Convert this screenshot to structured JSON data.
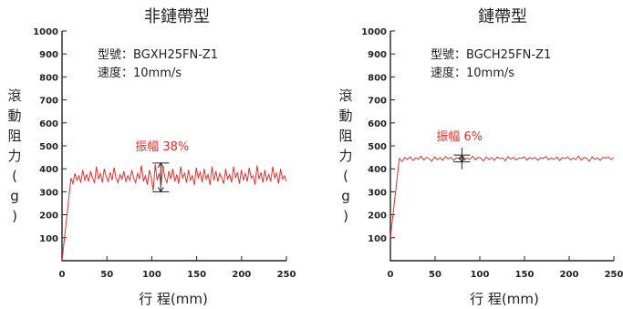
{
  "chart_data": [
    {
      "type": "line",
      "title": "非鏈帶型",
      "xlabel": "行 程(mm)",
      "ylabel_chars": [
        "滾",
        "動",
        "阻",
        "力",
        "(",
        "g",
        ")"
      ],
      "xlim": [
        0,
        250
      ],
      "ylim": [
        0,
        1000
      ],
      "x_ticks": [
        0,
        50,
        100,
        150,
        200,
        250
      ],
      "y_ticks": [
        100,
        200,
        300,
        400,
        500,
        600,
        700,
        800,
        900,
        1000
      ],
      "info_lines": [
        "型號：BGXH25FN-Z1",
        "速度：10mm/s"
      ],
      "amplitude_label": "振幅 38%",
      "amplitude_range": [
        300,
        425
      ],
      "amplitude_x": 110,
      "color": "#e0312d",
      "series": [
        {
          "ramp": [
            [
              0,
              0
            ],
            [
              10,
              360
            ]
          ],
          "x_start": 10,
          "x_end": 250,
          "values": [
            360,
            335,
            380,
            350,
            370,
            340,
            395,
            350,
            375,
            345,
            390,
            360,
            340,
            410,
            355,
            380,
            340,
            400,
            365,
            345,
            385,
            350,
            405,
            360,
            340,
            375,
            355,
            390,
            345,
            370,
            350,
            395,
            360,
            340,
            380,
            355,
            415,
            345,
            370,
            330,
            395,
            360,
            305,
            420,
            350,
            380,
            330,
            410,
            360,
            340,
            390,
            355,
            400,
            345,
            375,
            335,
            410,
            360,
            380,
            340,
            395,
            350,
            370,
            330,
            405,
            360,
            385,
            340,
            400,
            355,
            375,
            330,
            410,
            350,
            390,
            345,
            380,
            360,
            335,
            400,
            355,
            375,
            340,
            410,
            360,
            385,
            335,
            395,
            350,
            380,
            345,
            405,
            360,
            370,
            330,
            415,
            355,
            385,
            340,
            395,
            350,
            375,
            345,
            410,
            360,
            380,
            335,
            400,
            355,
            370,
            345
          ]
        }
      ]
    },
    {
      "type": "line",
      "title": "鏈帶型",
      "xlabel": "行 程(mm)",
      "ylabel_chars": [
        "滾",
        "動",
        "阻",
        "力",
        "(",
        "g",
        ")"
      ],
      "xlim": [
        0,
        250
      ],
      "ylim": [
        0,
        1000
      ],
      "x_ticks": [
        0,
        50,
        100,
        150,
        200,
        250
      ],
      "y_ticks": [
        100,
        200,
        300,
        400,
        500,
        600,
        700,
        800,
        900,
        1000
      ],
      "info_lines": [
        "型號：BGCH25FN-Z1",
        "速度：10mm/s"
      ],
      "amplitude_label": "振幅 6%",
      "amplitude_range": [
        430,
        460
      ],
      "amplitude_x": 80,
      "color": "#e0312d",
      "series": [
        {
          "ramp": [
            [
              0,
              100
            ],
            [
              10,
              445
            ]
          ],
          "x_start": 10,
          "x_end": 250,
          "values": [
            445,
            432,
            450,
            440,
            452,
            436,
            448,
            442,
            455,
            438,
            450,
            444,
            433,
            452,
            440,
            449,
            437,
            454,
            443,
            450,
            436,
            448,
            445,
            452,
            438,
            447,
            441,
            455,
            439,
            450,
            446,
            434,
            452,
            441,
            449,
            437,
            451,
            444,
            448,
            435,
            453,
            442,
            450,
            439,
            447,
            446,
            452,
            438,
            449,
            443,
            450,
            437,
            448,
            445,
            454,
            440,
            447,
            442,
            451,
            436,
            449,
            444,
            452,
            439,
            447,
            441,
            455,
            438,
            450,
            445,
            433,
            452,
            441,
            448,
            437,
            450,
            446,
            452,
            440,
            449
          ]
        }
      ]
    }
  ]
}
